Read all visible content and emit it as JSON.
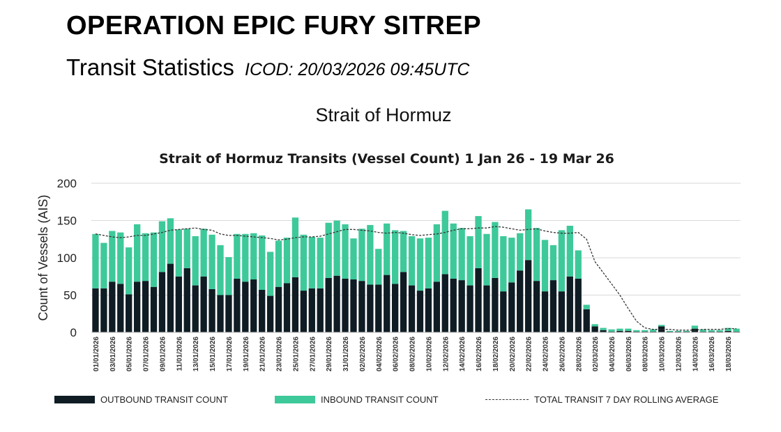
{
  "header": {
    "main_title": "OPERATION EPIC FURY SITREP",
    "subtitle": "Transit Statistics",
    "icod": "ICOD: 20/03/2026 09:45UTC",
    "section_title": "Strait of Hormuz"
  },
  "colors": {
    "outbound": "#0f1c24",
    "inbound": "#3ec99a",
    "rolling_avg": "#333333",
    "grid": "#d9d9d9"
  },
  "chart_data": {
    "type": "bar",
    "stacked": true,
    "title": "Strait of Hormuz Transits (Vessel Count) 1 Jan 26 - 19 Mar 26",
    "xlabel": "",
    "ylabel": "Count of Vessels (AIS)",
    "ylim": [
      0,
      200
    ],
    "yticks": [
      0,
      50,
      100,
      150,
      200
    ],
    "grid": true,
    "legend_position": "bottom",
    "categories": [
      "01/01/2026",
      "02/01/2026",
      "03/01/2026",
      "04/01/2026",
      "05/01/2026",
      "06/01/2026",
      "07/01/2026",
      "08/01/2026",
      "09/01/2026",
      "10/01/2026",
      "11/01/2026",
      "12/01/2026",
      "13/01/2026",
      "14/01/2026",
      "15/01/2026",
      "16/01/2026",
      "17/01/2026",
      "18/01/2026",
      "19/01/2026",
      "20/01/2026",
      "21/01/2026",
      "22/01/2026",
      "23/01/2026",
      "24/01/2026",
      "25/01/2026",
      "26/01/2026",
      "27/01/2026",
      "28/01/2026",
      "29/01/2026",
      "30/01/2026",
      "31/01/2026",
      "01/02/2026",
      "02/02/2026",
      "03/02/2026",
      "04/02/2026",
      "05/02/2026",
      "06/02/2026",
      "07/02/2026",
      "08/02/2026",
      "09/02/2026",
      "10/02/2026",
      "11/02/2026",
      "12/02/2026",
      "13/02/2026",
      "14/02/2026",
      "15/02/2026",
      "16/02/2026",
      "17/02/2026",
      "18/02/2026",
      "19/02/2026",
      "20/02/2026",
      "21/02/2026",
      "22/02/2026",
      "23/02/2026",
      "24/02/2026",
      "25/02/2026",
      "26/02/2026",
      "27/02/2026",
      "28/02/2026",
      "01/03/2026",
      "02/03/2026",
      "03/03/2026",
      "04/03/2026",
      "05/03/2026",
      "06/03/2026",
      "07/03/2026",
      "08/03/2026",
      "09/03/2026",
      "10/03/2026",
      "11/03/2026",
      "12/03/2026",
      "13/03/2026",
      "14/03/2026",
      "15/03/2026",
      "16/03/2026",
      "17/03/2026",
      "18/03/2026",
      "19/03/2026"
    ],
    "tick_labels": [
      "01/01/2026",
      "03/01/2026",
      "05/01/2026",
      "07/01/2026",
      "09/01/2026",
      "11/01/2026",
      "13/01/2026",
      "15/01/2026",
      "17/01/2026",
      "19/01/2026",
      "21/01/2026",
      "23/01/2026",
      "25/01/2026",
      "27/01/2026",
      "29/01/2026",
      "31/01/2026",
      "02/02/2026",
      "04/02/2026",
      "06/02/2026",
      "08/02/2026",
      "10/02/2026",
      "12/02/2026",
      "14/02/2026",
      "16/02/2026",
      "18/02/2026",
      "20/02/2026",
      "22/02/2026",
      "24/02/2026",
      "26/02/2026",
      "28/02/2026",
      "02/03/2026",
      "04/03/2026",
      "06/03/2026",
      "08/03/2026",
      "10/03/2026",
      "12/03/2026",
      "14/03/2026",
      "16/03/2026",
      "18/03/2026"
    ],
    "series": [
      {
        "name": "OUTBOUND TRANSIT COUNT",
        "values": [
          59,
          59,
          68,
          65,
          51,
          68,
          69,
          61,
          81,
          92,
          75,
          86,
          63,
          75,
          58,
          50,
          50,
          72,
          68,
          71,
          57,
          49,
          61,
          66,
          74,
          56,
          59,
          59,
          73,
          76,
          72,
          71,
          69,
          64,
          64,
          77,
          65,
          81,
          63,
          56,
          59,
          68,
          78,
          72,
          70,
          63,
          86,
          63,
          73,
          55,
          67,
          83,
          97,
          69,
          55,
          70,
          55,
          75,
          72,
          31,
          8,
          3,
          1,
          2,
          2,
          1,
          1,
          1,
          8,
          1,
          1,
          1,
          5,
          1,
          1,
          1,
          2,
          1
        ]
      },
      {
        "name": "INBOUND TRANSIT COUNT",
        "values": [
          73,
          61,
          68,
          69,
          63,
          77,
          64,
          73,
          68,
          61,
          63,
          53,
          66,
          64,
          73,
          67,
          51,
          60,
          64,
          62,
          73,
          59,
          62,
          61,
          80,
          75,
          69,
          68,
          74,
          74,
          73,
          55,
          70,
          80,
          48,
          69,
          72,
          55,
          66,
          70,
          68,
          77,
          85,
          74,
          70,
          66,
          70,
          69,
          75,
          74,
          60,
          50,
          68,
          71,
          69,
          47,
          82,
          68,
          38,
          6,
          3,
          3,
          3,
          3,
          3,
          2,
          2,
          3,
          2,
          1,
          1,
          1,
          4,
          3,
          2,
          2,
          4,
          4
        ]
      }
    ],
    "line_series": {
      "name": "TOTAL TRANSIT 7 DAY ROLLING AVERAGE",
      "values": [
        132,
        130,
        128,
        127,
        128,
        130,
        130,
        132,
        134,
        137,
        138,
        139,
        140,
        138,
        137,
        132,
        130,
        130,
        129,
        128,
        127,
        126,
        124,
        125,
        127,
        128,
        128,
        129,
        132,
        135,
        138,
        138,
        137,
        136,
        134,
        133,
        134,
        133,
        131,
        130,
        131,
        132,
        134,
        137,
        139,
        139,
        140,
        140,
        142,
        141,
        139,
        137,
        138,
        139,
        136,
        134,
        133,
        133,
        134,
        125,
        95,
        80,
        65,
        50,
        32,
        15,
        6,
        4,
        4,
        4,
        3,
        3,
        3,
        4,
        4,
        4,
        5,
        5
      ]
    }
  }
}
